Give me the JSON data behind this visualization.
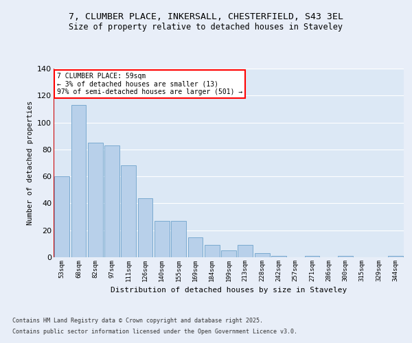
{
  "title_line1": "7, CLUMBER PLACE, INKERSALL, CHESTERFIELD, S43 3EL",
  "title_line2": "Size of property relative to detached houses in Staveley",
  "xlabel": "Distribution of detached houses by size in Staveley",
  "ylabel": "Number of detached properties",
  "categories": [
    "53sqm",
    "68sqm",
    "82sqm",
    "97sqm",
    "111sqm",
    "126sqm",
    "140sqm",
    "155sqm",
    "169sqm",
    "184sqm",
    "199sqm",
    "213sqm",
    "228sqm",
    "242sqm",
    "257sqm",
    "271sqm",
    "286sqm",
    "300sqm",
    "315sqm",
    "329sqm",
    "344sqm"
  ],
  "values": [
    60,
    113,
    85,
    83,
    68,
    44,
    27,
    27,
    15,
    9,
    5,
    9,
    3,
    1,
    0,
    1,
    0,
    1,
    0,
    0,
    1
  ],
  "bar_color": "#b8d0ea",
  "bar_edge_color": "#7aaad0",
  "background_color": "#dce8f5",
  "grid_color": "#ffffff",
  "annotation_box_text": "7 CLUMBER PLACE: 59sqm\n← 3% of detached houses are smaller (13)\n97% of semi-detached houses are larger (501) →",
  "red_line_color": "#cc0000",
  "ylim": [
    0,
    140
  ],
  "yticks": [
    0,
    20,
    40,
    60,
    80,
    100,
    120,
    140
  ],
  "fig_bg": "#e8eef8",
  "footer_line1": "Contains HM Land Registry data © Crown copyright and database right 2025.",
  "footer_line2": "Contains public sector information licensed under the Open Government Licence v3.0."
}
